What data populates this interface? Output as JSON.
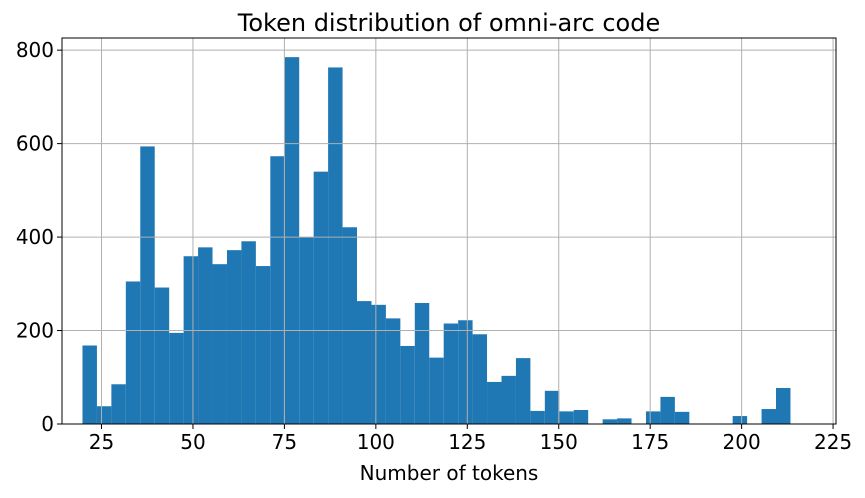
{
  "chart_data": {
    "type": "bar",
    "title": "Token distribution of omni-arc code",
    "xlabel": "Number of tokens",
    "ylabel": "",
    "xlim": [
      14.2,
      225.8
    ],
    "ylim": [
      0,
      826
    ],
    "xticks": [
      25,
      50,
      75,
      100,
      125,
      150,
      175,
      200,
      225
    ],
    "yticks": [
      0,
      200,
      400,
      600,
      800
    ],
    "grid": true,
    "legend": "none",
    "bar_color": "#1f77b4",
    "bin_start": 19.8,
    "bin_width": 3.95,
    "values": [
      168,
      38,
      85,
      305,
      594,
      292,
      195,
      359,
      378,
      342,
      372,
      391,
      338,
      573,
      785,
      400,
      540,
      763,
      421,
      263,
      255,
      226,
      167,
      259,
      142,
      215,
      222,
      192,
      90,
      103,
      141,
      28,
      71,
      27,
      30,
      0,
      10,
      12,
      0,
      27,
      58,
      26,
      0,
      0,
      0,
      17,
      0,
      32,
      77
    ]
  }
}
